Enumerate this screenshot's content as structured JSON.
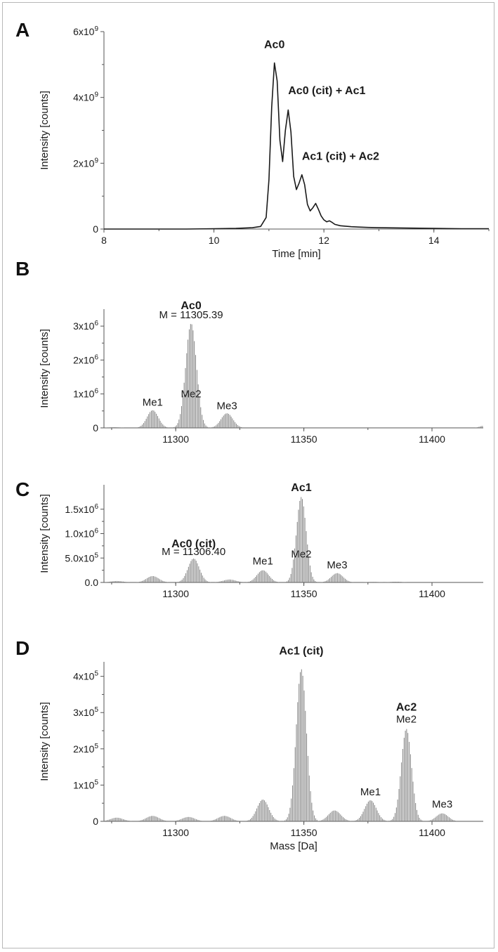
{
  "chart_data": [
    {
      "panel": "A",
      "type": "line",
      "xlabel": "Time [min]",
      "ylabel": "Intensity [counts]",
      "xlim": [
        8,
        15
      ],
      "ylim": [
        0,
        6000000000
      ],
      "x_ticks": [
        {
          "value": 8,
          "label": "8"
        },
        {
          "value": 10,
          "label": "10"
        },
        {
          "value": 12,
          "label": "12"
        },
        {
          "value": 14,
          "label": "14"
        }
      ],
      "y_ticks": [
        {
          "value": 0,
          "label": "0"
        },
        {
          "value": 2000000000,
          "base": "2x10",
          "exp": "9"
        },
        {
          "value": 4000000000,
          "base": "4x10",
          "exp": "9"
        },
        {
          "value": 6000000000,
          "base": "6x10",
          "exp": "9"
        }
      ],
      "x": [
        8.0,
        8.5,
        9.0,
        9.5,
        10.0,
        10.4,
        10.7,
        10.85,
        10.95,
        11.0,
        11.05,
        11.1,
        11.15,
        11.2,
        11.25,
        11.3,
        11.35,
        11.4,
        11.45,
        11.5,
        11.55,
        11.6,
        11.65,
        11.7,
        11.75,
        11.8,
        11.85,
        11.9,
        11.95,
        12.0,
        12.05,
        12.1,
        12.15,
        12.2,
        12.3,
        12.5,
        12.8,
        13.0,
        13.5,
        14.0,
        14.5,
        15.0
      ],
      "y": [
        0.0,
        0.0,
        0.0,
        0.0,
        10000000.0,
        20000000.0,
        40000000.0,
        80000000.0,
        350000000.0,
        1500000000.0,
        3700000000.0,
        5050000000.0,
        4500000000.0,
        2700000000.0,
        2050000000.0,
        3000000000.0,
        3620000000.0,
        2950000000.0,
        1600000000.0,
        1200000000.0,
        1400000000.0,
        1650000000.0,
        1350000000.0,
        750000000.0,
        550000000.0,
        650000000.0,
        780000000.0,
        600000000.0,
        400000000.0,
        280000000.0,
        220000000.0,
        250000000.0,
        200000000.0,
        140000000.0,
        100000000.0,
        70000000.0,
        50000000.0,
        40000000.0,
        30000000.0,
        20000000.0,
        10000000.0,
        10000000.0
      ],
      "annotations": [
        {
          "text": "Ac0",
          "x": 11.1,
          "y": 5500000000.0,
          "bold": true,
          "anchor": "middle"
        },
        {
          "text": "Ac0 (cit) + Ac1",
          "x": 11.35,
          "y": 4100000000.0,
          "bold": true,
          "anchor": "start"
        },
        {
          "text": "Ac1 (cit) + Ac2",
          "x": 11.6,
          "y": 2100000000.0,
          "bold": true,
          "anchor": "start"
        }
      ]
    },
    {
      "panel": "B",
      "type": "bar",
      "xlabel": "",
      "ylabel": "Intensity [counts]",
      "xlim": [
        11272,
        11420
      ],
      "ylim": [
        0,
        3500000
      ],
      "x_ticks": [
        {
          "value": 11300,
          "label": "11300"
        },
        {
          "value": 11350,
          "label": "11350"
        },
        {
          "value": 11400,
          "label": "11400"
        }
      ],
      "y_ticks": [
        {
          "value": 0,
          "label": "0"
        },
        {
          "value": 1000000,
          "base": "1x10",
          "exp": "6"
        },
        {
          "value": 2000000,
          "base": "2x10",
          "exp": "6"
        },
        {
          "value": 3000000,
          "base": "3x10",
          "exp": "6"
        }
      ],
      "peaks": [
        {
          "center": 11276,
          "height": 20000,
          "width": 2.5
        },
        {
          "center": 11291,
          "height": 520000,
          "width": 2.2
        },
        {
          "center": 11306,
          "height": 3080000,
          "width": 2.1
        },
        {
          "center": 11320,
          "height": 430000,
          "width": 2.3
        },
        {
          "center": 11420,
          "height": 60000,
          "width": 1.5
        }
      ],
      "annotations": [
        {
          "text": "Ac0",
          "x": 11306,
          "y": 3500000,
          "bold": true,
          "anchor": "middle"
        },
        {
          "text": "M = 11305.39",
          "x": 11306,
          "y": 3230000,
          "bold": false,
          "anchor": "middle"
        },
        {
          "text": "Me1",
          "x": 11291,
          "y": 650000,
          "bold": false,
          "anchor": "middle"
        },
        {
          "text": "Me2",
          "x": 11306,
          "y": 900000,
          "bold": false,
          "anchor": "middle"
        },
        {
          "text": "Me3",
          "x": 11320,
          "y": 550000,
          "bold": false,
          "anchor": "middle"
        }
      ]
    },
    {
      "panel": "C",
      "type": "bar",
      "xlabel": "",
      "ylabel": "Intensity [counts]",
      "xlim": [
        11272,
        11420
      ],
      "ylim": [
        0,
        2000000
      ],
      "x_ticks": [
        {
          "value": 11300,
          "label": "11300"
        },
        {
          "value": 11350,
          "label": "11350"
        },
        {
          "value": 11400,
          "label": "11400"
        }
      ],
      "y_ticks": [
        {
          "value": 0,
          "label": "0.0"
        },
        {
          "value": 500000,
          "base": "5.0x10",
          "exp": "5"
        },
        {
          "value": 1000000,
          "base": "1.0x10",
          "exp": "6"
        },
        {
          "value": 1500000,
          "base": "1.5x10",
          "exp": "6"
        }
      ],
      "peaks": [
        {
          "center": 11277,
          "height": 30000,
          "width": 2.5
        },
        {
          "center": 11291,
          "height": 130000,
          "width": 2.4
        },
        {
          "center": 11307,
          "height": 490000,
          "width": 2.2
        },
        {
          "center": 11321,
          "height": 60000,
          "width": 2.5
        },
        {
          "center": 11334,
          "height": 250000,
          "width": 2.3
        },
        {
          "center": 11349,
          "height": 1750000,
          "width": 1.9
        },
        {
          "center": 11363,
          "height": 190000,
          "width": 2.3
        },
        {
          "center": 11377,
          "height": 12000,
          "width": 2.5
        },
        {
          "center": 11386,
          "height": 15000,
          "width": 2.5
        }
      ],
      "annotations": [
        {
          "text": "Ac1",
          "x": 11349,
          "y": 1870000,
          "bold": true,
          "anchor": "middle"
        },
        {
          "text": "Ac0 (cit)",
          "x": 11307,
          "y": 720000,
          "bold": true,
          "anchor": "middle"
        },
        {
          "text": "M = 11306.40",
          "x": 11307,
          "y": 560000,
          "bold": false,
          "anchor": "middle"
        },
        {
          "text": "Me1",
          "x": 11334,
          "y": 370000,
          "bold": false,
          "anchor": "middle"
        },
        {
          "text": "Me2",
          "x": 11349,
          "y": 510000,
          "bold": false,
          "anchor": "middle"
        },
        {
          "text": "Me3",
          "x": 11363,
          "y": 290000,
          "bold": false,
          "anchor": "middle"
        }
      ]
    },
    {
      "panel": "D",
      "type": "bar",
      "xlabel": "Mass [Da]",
      "ylabel": "Intensity [counts]",
      "xlim": [
        11272,
        11420
      ],
      "ylim": [
        0,
        440000
      ],
      "x_ticks": [
        {
          "value": 11300,
          "label": "11300"
        },
        {
          "value": 11350,
          "label": "11350"
        },
        {
          "value": 11400,
          "label": "11400"
        }
      ],
      "y_ticks": [
        {
          "value": 0,
          "label": "0"
        },
        {
          "value": 100000,
          "base": "1x10",
          "exp": "5"
        },
        {
          "value": 200000,
          "base": "2x10",
          "exp": "5"
        },
        {
          "value": 300000,
          "base": "3x10",
          "exp": "5"
        },
        {
          "value": 400000,
          "base": "4x10",
          "exp": "5"
        }
      ],
      "peaks": [
        {
          "center": 11277,
          "height": 10000,
          "width": 2.5
        },
        {
          "center": 11291,
          "height": 15000,
          "width": 2.5
        },
        {
          "center": 11305,
          "height": 12000,
          "width": 2.5
        },
        {
          "center": 11319,
          "height": 15000,
          "width": 2.5
        },
        {
          "center": 11334,
          "height": 60000,
          "width": 2.3
        },
        {
          "center": 11349,
          "height": 420000,
          "width": 2.0
        },
        {
          "center": 11362,
          "height": 30000,
          "width": 2.4
        },
        {
          "center": 11376,
          "height": 58000,
          "width": 2.3
        },
        {
          "center": 11390,
          "height": 255000,
          "width": 2.0
        },
        {
          "center": 11404,
          "height": 22000,
          "width": 2.3
        }
      ],
      "annotations": [
        {
          "text": "Ac1 (cit)",
          "x": 11349,
          "y": 460000,
          "bold": true,
          "anchor": "middle"
        },
        {
          "text": "Ac2",
          "x": 11390,
          "y": 305000,
          "bold": true,
          "anchor": "middle"
        },
        {
          "text": "Me2",
          "x": 11390,
          "y": 272000,
          "bold": false,
          "anchor": "middle"
        },
        {
          "text": "Me1",
          "x": 11376,
          "y": 72000,
          "bold": false,
          "anchor": "middle"
        },
        {
          "text": "Me3",
          "x": 11404,
          "y": 38000,
          "bold": false,
          "anchor": "middle"
        }
      ]
    }
  ],
  "colors": {
    "line": "#1a1a1a",
    "bars": "#777777",
    "axis": "#555555"
  }
}
